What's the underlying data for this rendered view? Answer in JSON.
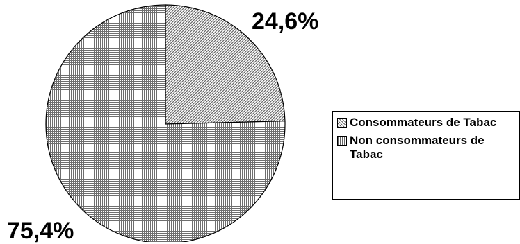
{
  "chart_data": {
    "type": "pie",
    "title": "",
    "slices": [
      {
        "label": "Consommateurs de Tabac",
        "value": 24.6,
        "value_label": "24,6%",
        "pattern": "diagonal-hatch",
        "fill_color": "#bdbdbd"
      },
      {
        "label": "Non consommateurs de Tabac",
        "value": 75.4,
        "value_label": "75,4%",
        "pattern": "fine-grid",
        "fill_color": "#a8a8a8"
      }
    ],
    "legend_position": "right",
    "start_angle": "12 o'clock",
    "direction": "clockwise"
  }
}
